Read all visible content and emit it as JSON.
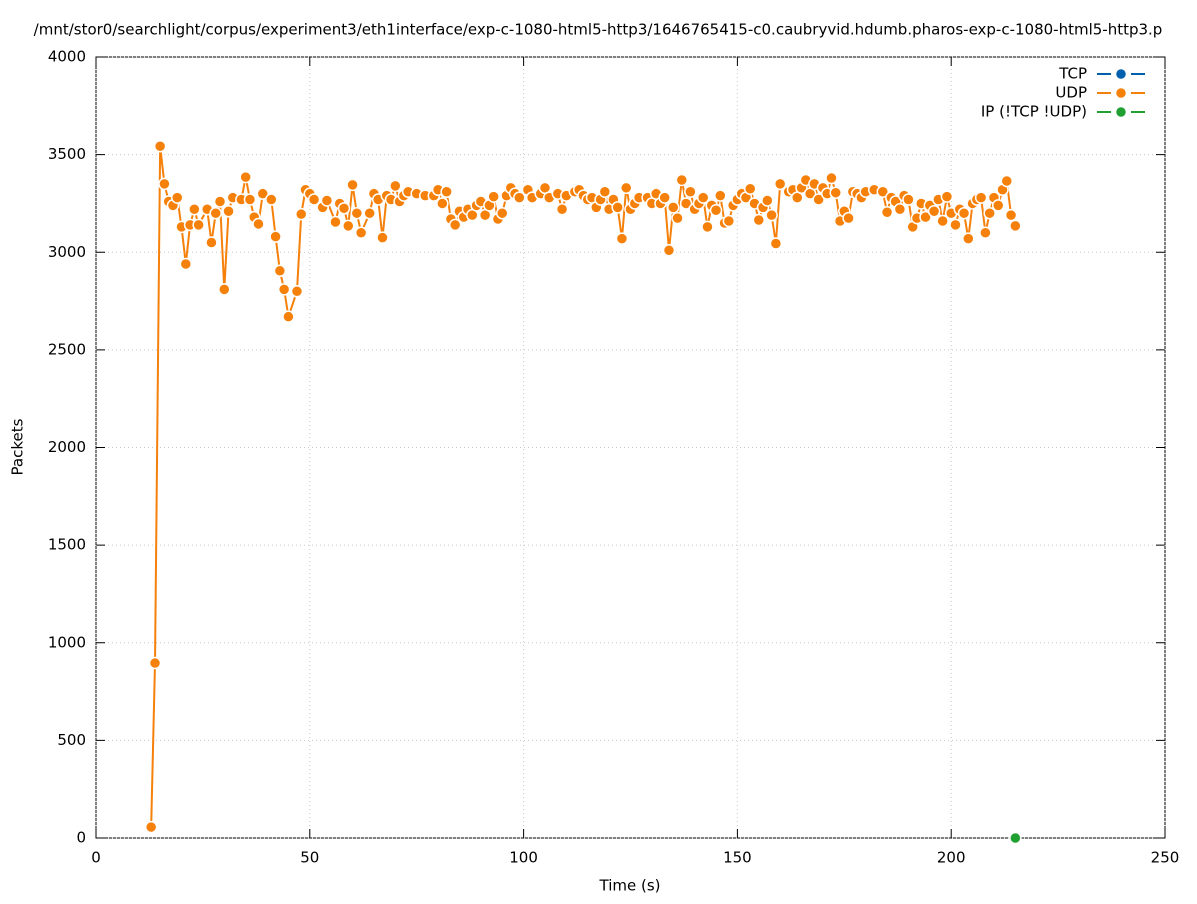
{
  "chart_data": {
    "type": "line",
    "title": "/mnt/stor0/searchlight/corpus/experiment3/eth1interface/exp-c-1080-html5-http3/1646765415-c0.caubryvid.hdumb.pharos-exp-c-1080-html5-http3.p",
    "xlabel": "Time (s)",
    "ylabel": "Packets",
    "xlim": [
      0,
      250
    ],
    "ylim": [
      0,
      4000
    ],
    "xticks": [
      0,
      50,
      100,
      150,
      200,
      250
    ],
    "yticks": [
      0,
      500,
      1000,
      1500,
      2000,
      2500,
      3000,
      3500,
      4000
    ],
    "grid": true,
    "legend": "top-right",
    "series": [
      {
        "name": "TCP",
        "color": "#0060ad",
        "x": [],
        "values": []
      },
      {
        "name": "UDP",
        "color": "#f5800a",
        "x": [
          12.9,
          13.8,
          15,
          16,
          17,
          18,
          19,
          20,
          21,
          22,
          23,
          24,
          26,
          27,
          28,
          29,
          30,
          31,
          32,
          34,
          35,
          36,
          37,
          38,
          39,
          41,
          42,
          43,
          44,
          45,
          47,
          48,
          49,
          50,
          51,
          53,
          54,
          56,
          57,
          58,
          59,
          60,
          61,
          62,
          64,
          65,
          66,
          67,
          68,
          69,
          70,
          71,
          72,
          73,
          75,
          77,
          79,
          80,
          81,
          82,
          83,
          84,
          85,
          86,
          87,
          88,
          89,
          90,
          91,
          92,
          93,
          94,
          95,
          96,
          97,
          98,
          99,
          101,
          102,
          104,
          105,
          106,
          108,
          109,
          110,
          112,
          113,
          114,
          115,
          116,
          117,
          118,
          119,
          120,
          121,
          122,
          123,
          124,
          125,
          126,
          127,
          129,
          130,
          131,
          132,
          133,
          134,
          135,
          136,
          137,
          138,
          139,
          140,
          141,
          142,
          143,
          144,
          145,
          146,
          147,
          148,
          149,
          150,
          151,
          152,
          153,
          154,
          155,
          156,
          157,
          158,
          159,
          160,
          162,
          163,
          164,
          165,
          166,
          167,
          168,
          169,
          170,
          171,
          172,
          173,
          174,
          175,
          176,
          177,
          178,
          179,
          180,
          182,
          184,
          185,
          186,
          187,
          188,
          189,
          190,
          191,
          192,
          193,
          194,
          195,
          196,
          197,
          198,
          199,
          200,
          201,
          202,
          203,
          204,
          205,
          206,
          207,
          208,
          209,
          210,
          211,
          212,
          213,
          214,
          215
        ],
        "values": [
          56,
          896,
          3543,
          3350,
          3260,
          3240,
          3280,
          3130,
          2940,
          3140,
          3220,
          3140,
          3220,
          3050,
          3200,
          3260,
          2810,
          3210,
          3280,
          3270,
          3385,
          3270,
          3180,
          3145,
          3300,
          3270,
          3080,
          2905,
          2810,
          2670,
          2800,
          3195,
          3320,
          3300,
          3270,
          3230,
          3265,
          3155,
          3250,
          3225,
          3135,
          3345,
          3200,
          3100,
          3200,
          3300,
          3270,
          3075,
          3290,
          3270,
          3340,
          3260,
          3290,
          3310,
          3300,
          3290,
          3290,
          3320,
          3250,
          3310,
          3170,
          3140,
          3210,
          3180,
          3220,
          3190,
          3240,
          3260,
          3190,
          3240,
          3285,
          3170,
          3200,
          3290,
          3330,
          3300,
          3280,
          3320,
          3280,
          3300,
          3330,
          3280,
          3300,
          3220,
          3290,
          3310,
          3320,
          3290,
          3270,
          3280,
          3230,
          3270,
          3310,
          3220,
          3270,
          3230,
          3070,
          3330,
          3220,
          3250,
          3280,
          3280,
          3250,
          3300,
          3250,
          3280,
          3010,
          3230,
          3175,
          3370,
          3250,
          3310,
          3220,
          3250,
          3280,
          3130,
          3240,
          3215,
          3290,
          3150,
          3160,
          3240,
          3270,
          3300,
          3280,
          3325,
          3250,
          3165,
          3230,
          3265,
          3190,
          3045,
          3350,
          3310,
          3320,
          3280,
          3330,
          3370,
          3300,
          3350,
          3270,
          3330,
          3300,
          3380,
          3305,
          3160,
          3210,
          3175,
          3310,
          3300,
          3280,
          3310,
          3320,
          3310,
          3205,
          3280,
          3260,
          3220,
          3290,
          3270,
          3130,
          3175,
          3250,
          3180,
          3240,
          3210,
          3270,
          3160,
          3285,
          3200,
          3140,
          3220,
          3200,
          3070,
          3250,
          3270,
          3280,
          3100,
          3200,
          3280,
          3240,
          3320,
          3365,
          3190,
          3135
        ]
      },
      {
        "name": "IP (!TCP  !UDP)",
        "color": "#20a030",
        "x": [
          215
        ],
        "values": [
          0
        ]
      }
    ]
  }
}
